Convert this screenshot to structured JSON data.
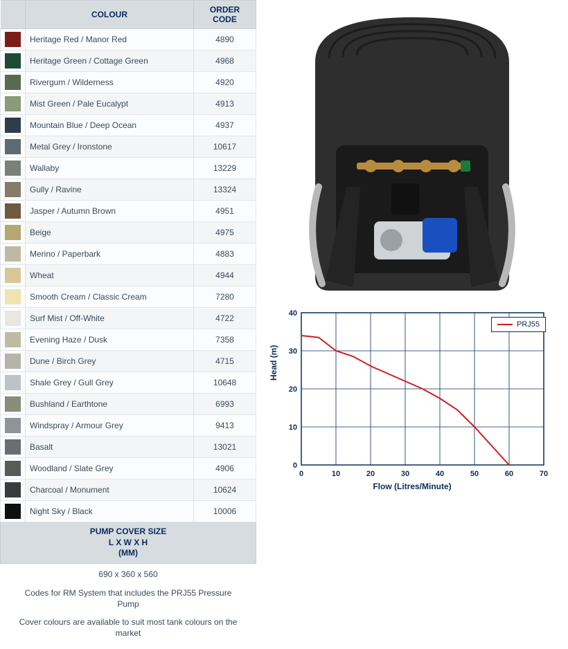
{
  "table": {
    "headers": {
      "colour": "COLOUR",
      "order_code": "ORDER CODE"
    },
    "rows": [
      {
        "swatch": "#7b1d1a",
        "name": "Heritage Red / Manor Red",
        "code": "4890"
      },
      {
        "swatch": "#1f4a33",
        "name": "Heritage Green / Cottage Green",
        "code": "4968"
      },
      {
        "swatch": "#5a6a52",
        "name": "Rivergum / Wilderness",
        "code": "4920"
      },
      {
        "swatch": "#8a9a7a",
        "name": "Mist Green / Pale Eucalypt",
        "code": "4913"
      },
      {
        "swatch": "#2f3d4a",
        "name": "Mountain Blue / Deep Ocean",
        "code": "4937"
      },
      {
        "swatch": "#5f6a72",
        "name": "Metal Grey / Ironstone",
        "code": "10617"
      },
      {
        "swatch": "#7a8278",
        "name": "Wallaby",
        "code": "13229"
      },
      {
        "swatch": "#857d68",
        "name": "Gully / Ravine",
        "code": "13324"
      },
      {
        "swatch": "#6f5a3e",
        "name": "Jasper / Autumn Brown",
        "code": "4951"
      },
      {
        "swatch": "#b5a76f",
        "name": "Beige",
        "code": "4975"
      },
      {
        "swatch": "#bfb9a3",
        "name": "Merino / Paperbark",
        "code": "4883"
      },
      {
        "swatch": "#d7c89a",
        "name": "Wheat",
        "code": "4944"
      },
      {
        "swatch": "#f1e3b0",
        "name": "Smooth Cream / Classic Cream",
        "code": "7280"
      },
      {
        "swatch": "#e8e8e1",
        "name": "Surf Mist / Off-White",
        "code": "4722"
      },
      {
        "swatch": "#bdbba2",
        "name": "Evening Haze / Dusk",
        "code": "7358"
      },
      {
        "swatch": "#b6b4a8",
        "name": "Dune / Birch Grey",
        "code": "4715"
      },
      {
        "swatch": "#bfc3c4",
        "name": "Shale Grey / Gull Grey",
        "code": "10648"
      },
      {
        "swatch": "#8a8b78",
        "name": "Bushland / Earthtone",
        "code": "6993"
      },
      {
        "swatch": "#8e9598",
        "name": "Windspray / Armour Grey",
        "code": "9413"
      },
      {
        "swatch": "#6a6e6f",
        "name": "Basalt",
        "code": "13021"
      },
      {
        "swatch": "#575c55",
        "name": "Woodland / Slate Grey",
        "code": "4906"
      },
      {
        "swatch": "#3a3c3b",
        "name": "Charcoal / Monument",
        "code": "10624"
      },
      {
        "swatch": "#0e0f10",
        "name": "Night Sky / Black",
        "code": "10006"
      }
    ]
  },
  "cover": {
    "header_line1": "PUMP COVER SIZE",
    "header_line2": "L X W X H",
    "header_line3": "(MM)",
    "size": "690 x 360 x 560"
  },
  "notes": {
    "line1": "Codes for RM System that includes the PRJ55 Pressure Pump",
    "line2": "Cover colours are available to suit most tank colours on the market"
  },
  "product": {
    "cover_color": "#2e2e2e",
    "inner_color": "#1a1a1a",
    "brass_color": "#b88c3f",
    "hose_color": "#b8b8b8",
    "pump_body_color": "#cfd3d6",
    "pump_accent_color": "#1a4fbf"
  },
  "chart": {
    "type": "line",
    "title": "",
    "series_name": "PRJ55",
    "line_color": "#d01c1f",
    "line_width": 2,
    "border_color": "#0a2b5c",
    "grid_color": "#0a2b5c",
    "background_color": "#ffffff",
    "xlabel": "Flow (Litres/Minute)",
    "ylabel": "Head (m)",
    "label_fontsize": 12,
    "tick_fontsize": 11,
    "xlim": [
      0,
      70
    ],
    "ylim": [
      0,
      40
    ],
    "xtick_step": 10,
    "ytick_step": 10,
    "x": [
      0,
      5,
      10,
      15,
      20,
      25,
      30,
      35,
      40,
      45,
      50,
      55,
      58,
      60
    ],
    "y": [
      34,
      33.5,
      30,
      28.5,
      26,
      24,
      22,
      20,
      17.5,
      14.5,
      10,
      5,
      2,
      0
    ]
  }
}
